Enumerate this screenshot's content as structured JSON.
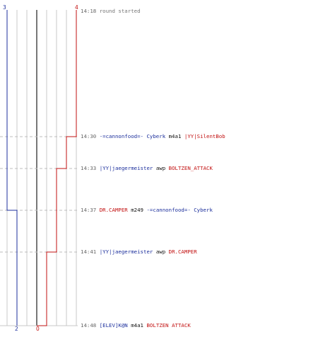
{
  "colors": {
    "blue": "#1c2f9c",
    "red": "#c21010",
    "grid": "#c8c8c8",
    "center": "#777777",
    "dash": "#bdbdbd"
  },
  "counts": {
    "blue_start": "3",
    "red_start": "4",
    "blue_end": "2",
    "red_end": "0"
  },
  "events": [
    {
      "time": "14:18",
      "text": "round started"
    },
    {
      "time": "14:30",
      "killer": "-=cannonfood=- Cyberk",
      "weapon": "m4a1",
      "victim": "|YY|SilentBob"
    },
    {
      "time": "14:33",
      "killer": "|YY|jaegermeister",
      "weapon": "awp",
      "victim": "BOLTZEN_ATTACK"
    },
    {
      "time": "14:37",
      "killer": "DR.CAMPER",
      "weapon": "m249",
      "victim": "-=cannonfood=- Cyberk"
    },
    {
      "time": "14:41",
      "killer": "|YY|jaegermeister",
      "weapon": "awp",
      "victim": "DR.CAMPER"
    },
    {
      "time": "14:48",
      "killer": "[ELEV]K@N",
      "weapon": "m4a1",
      "victim": "BOLTZEN ATTACK"
    }
  ]
}
